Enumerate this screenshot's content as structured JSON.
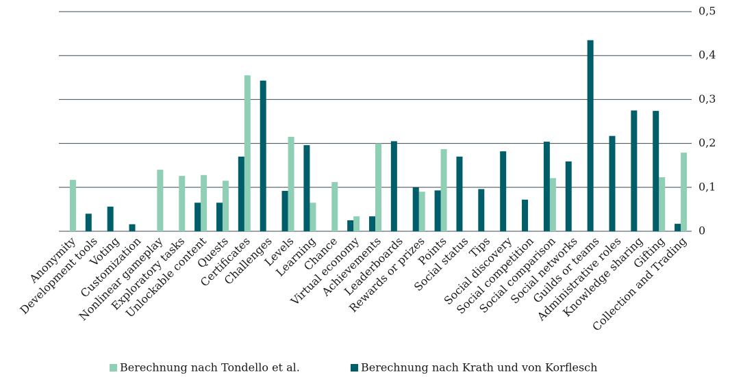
{
  "chart_data": {
    "type": "bar",
    "categories": [
      "Anonymity",
      "Development tools",
      "Voting",
      "Customization",
      "Nonlinear gameplay",
      "Exploratory tasks",
      "Unlockable content",
      "Quests",
      "Certificates",
      "Challenges",
      "Levels",
      "Learning",
      "Chance",
      "Virtual economy",
      "Achievements",
      "Leaderboards",
      "Rewards or prizes",
      "Points",
      "Social status",
      "Tips",
      "Social discovery",
      "Social competition",
      "Social comparison",
      "Social networks",
      "Guilds or teams",
      "Administrative roles",
      "Knowledge sharing",
      "Gifting",
      "Collection and Trading"
    ],
    "series": [
      {
        "name": "Berechnung nach Tondello et al.",
        "color": "#8ecfb6",
        "values": [
          0.117,
          0,
          0,
          0,
          0.14,
          0.126,
          0.128,
          0.115,
          0.355,
          0,
          0.215,
          0.065,
          0.112,
          0.034,
          0.2,
          0,
          0.09,
          0.187,
          0,
          0,
          0,
          0,
          0.121,
          0,
          0,
          0,
          0,
          0.123,
          0.179
        ]
      },
      {
        "name": "Berechnung nach Krath und von Korflesch",
        "color": "#005e6a",
        "values": [
          0,
          0.04,
          0.056,
          0.016,
          0,
          0,
          0.065,
          0.065,
          0.17,
          0.343,
          0.092,
          0.196,
          0,
          0.025,
          0.034,
          0.205,
          0.1,
          0.093,
          0.17,
          0.096,
          0.182,
          0.072,
          0.204,
          0.159,
          0.435,
          0.217,
          0.275,
          0.274,
          0.017
        ]
      }
    ],
    "ylim": [
      0,
      0.5
    ],
    "yticks": [
      0,
      {
        "value": 0.1,
        "label": "0,1"
      },
      {
        "value": 0.2,
        "label": "0,2"
      },
      {
        "value": 0.3,
        "label": "0,3"
      },
      {
        "value": 0.4,
        "label": "0,4"
      },
      {
        "value": 0.5,
        "label": "0,5"
      }
    ],
    "grid": true
  }
}
